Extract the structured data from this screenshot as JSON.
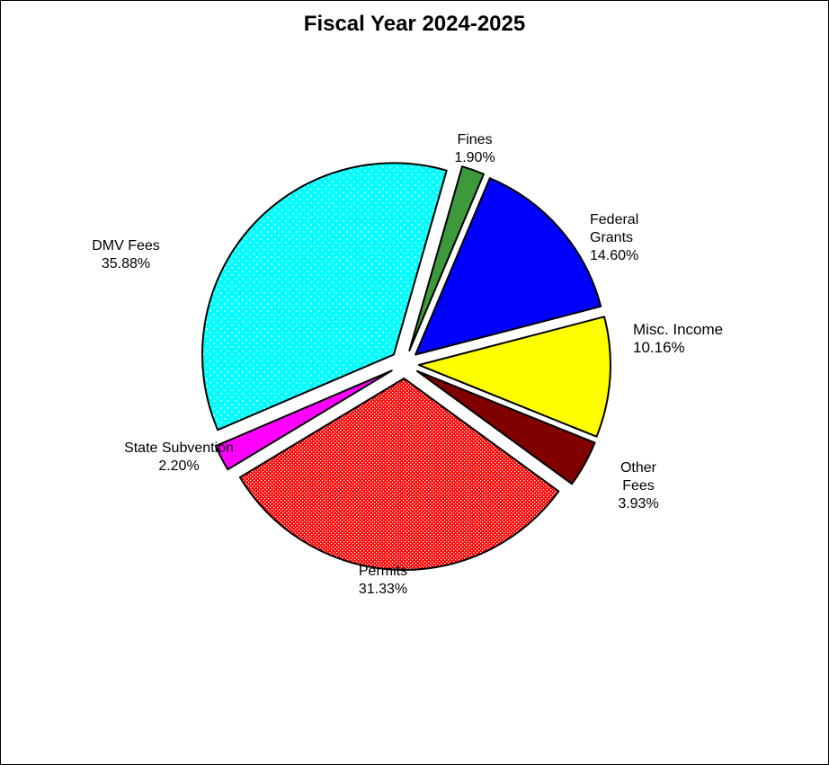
{
  "chart_data": {
    "type": "pie",
    "title": "Fiscal Year 2024-2025",
    "slices": [
      {
        "label_lines": [
          "Fines",
          "1.90%"
        ],
        "value": 1.9,
        "color": "#3c9a3c",
        "pattern": "none"
      },
      {
        "label_lines": [
          "Federal",
          "Grants",
          "14.60%"
        ],
        "value": 14.6,
        "color": "#0000ff",
        "pattern": "none"
      },
      {
        "label_lines": [
          "Misc. Income",
          "10.16%"
        ],
        "value": 10.16,
        "color": "#ffff00",
        "pattern": "none"
      },
      {
        "label_lines": [
          "Other",
          "Fees",
          "3.93%"
        ],
        "value": 3.93,
        "color": "#800000",
        "pattern": "none"
      },
      {
        "label_lines": [
          "Permits",
          "31.33%"
        ],
        "value": 31.33,
        "color": "#ff0000",
        "pattern": "checker"
      },
      {
        "label_lines": [
          "State Subvention",
          "2.20%"
        ],
        "value": 2.2,
        "color": "#ff00ff",
        "pattern": "none"
      },
      {
        "label_lines": [
          "DMV Fees",
          "35.88%"
        ],
        "value": 35.88,
        "color": "#00ffff",
        "pattern": "dots"
      }
    ],
    "legend": "none",
    "exploded": true
  }
}
